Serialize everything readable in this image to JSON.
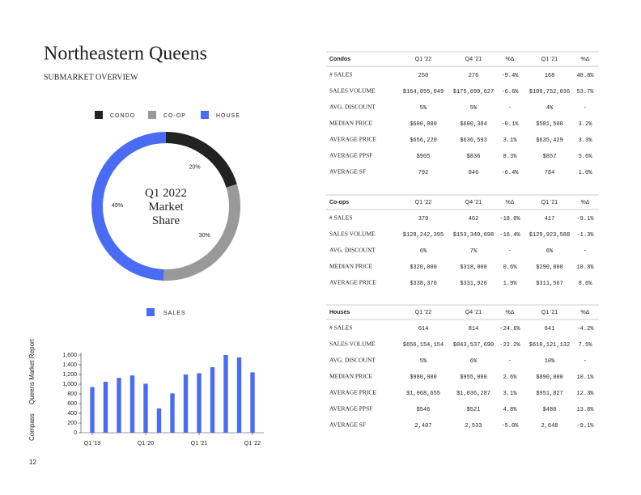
{
  "header": {
    "title": "Northeastern Queens",
    "subtitle": "SUBMARKET OVERVIEW"
  },
  "chart_data": [
    {
      "type": "pie",
      "title": "Q1 2022 Market Share",
      "categories": [
        "CONDO",
        "CO-OP",
        "HOUSE"
      ],
      "values": [
        20,
        30,
        49
      ],
      "value_labels": [
        "20%",
        "30%",
        "49%"
      ],
      "colors": [
        "#222222",
        "#999999",
        "#4a6cf4"
      ],
      "donut": true,
      "legend": "top"
    },
    {
      "type": "bar",
      "series": [
        {
          "name": "SALES",
          "color": "#4a6cf4",
          "values": [
            940,
            1050,
            1130,
            1180,
            1010,
            500,
            810,
            1200,
            1226,
            1350,
            1600,
            1552,
            1243
          ]
        }
      ],
      "categories": [
        "Q1 '19",
        null,
        null,
        null,
        "Q1 '20",
        null,
        null,
        null,
        "Q1 '21",
        null,
        null,
        null,
        "Q1 '22"
      ],
      "ylim": [
        0,
        1650
      ],
      "yticks": [
        0,
        200,
        400,
        600,
        800,
        {
          "value": 1000,
          "label": "1,000"
        },
        {
          "value": 1200,
          "label": "1,200"
        },
        {
          "value": 1400,
          "label": "1,400"
        },
        {
          "value": 1600,
          "label": "1,600"
        }
      ],
      "legend": "top"
    }
  ],
  "tables": [
    {
      "header": [
        "Condos",
        "Q1 '22",
        "Q4 '21",
        "%Δ",
        "Q1 '21",
        "%Δ"
      ],
      "rows": [
        [
          "# SALES",
          "250",
          "276",
          "-9.4%",
          "168",
          "48.8%"
        ],
        [
          "SALES VOLUME",
          "$164,055,049",
          "$175,699,627",
          "-6.6%",
          "$106,752,036",
          "53.7%"
        ],
        [
          "AVG. DISCOUNT",
          "5%",
          "5%",
          "-",
          "4%",
          "-"
        ],
        [
          "MEDIAN PRICE",
          "$600,000",
          "$600,384",
          "-0.1%",
          "$581,500",
          "3.2%"
        ],
        [
          "AVERAGE PRICE",
          "$656,220",
          "$636,593",
          "3.1%",
          "$635,429",
          "3.3%"
        ],
        [
          "AVERAGE PPSF",
          "$905",
          "$836",
          "8.3%",
          "$857",
          "5.6%"
        ],
        [
          "AVERAGE SF",
          "792",
          "846",
          "-6.4%",
          "784",
          "1.0%"
        ]
      ]
    },
    {
      "header": [
        "Co-ops",
        "Q1 '22",
        "Q4 '21",
        "%Δ",
        "Q1 '21",
        "%Δ"
      ],
      "rows": [
        [
          "# SALES",
          "379",
          "462",
          "-18.0%",
          "417",
          "-9.1%"
        ],
        [
          "SALES VOLUME",
          "$128,242,395",
          "$153,349,698",
          "-16.4%",
          "$129,923,588",
          "-1.3%"
        ],
        [
          "AVG. DISCOUNT",
          "6%",
          "7%",
          "-",
          "6%",
          "-"
        ],
        [
          "MEDIAN PRICE",
          "$320,000",
          "$318,000",
          "0.6%",
          "$290,000",
          "10.3%"
        ],
        [
          "AVERAGE PRICE",
          "$338,370",
          "$331,926",
          "1.9%",
          "$311,567",
          "8.6%"
        ]
      ]
    },
    {
      "header": [
        "Houses",
        "Q1 '22",
        "Q4 '21",
        "%Δ",
        "Q1 '21",
        "%Δ"
      ],
      "rows": [
        [
          "# SALES",
          "614",
          "814",
          "-24.6%",
          "641",
          "-4.2%"
        ],
        [
          "SALES VOLUME",
          "$656,154,154",
          "$843,537,690",
          "-22.2%",
          "$610,121,132",
          "7.5%"
        ],
        [
          "AVG. DISCOUNT",
          "5%",
          "6%",
          "-",
          "10%",
          "-"
        ],
        [
          "MEDIAN PRICE",
          "$980,000",
          "$955,000",
          "2.6%",
          "$890,000",
          "10.1%"
        ],
        [
          "AVERAGE PRICE",
          "$1,068,655",
          "$1,036,287",
          "3.1%",
          "$951,827",
          "12.3%"
        ],
        [
          "AVERAGE PPSF",
          "$546",
          "$521",
          "4.8%",
          "$480",
          "13.8%"
        ],
        [
          "AVERAGE SF",
          "2,407",
          "2,533",
          "-5.0%",
          "2,648",
          "-9.1%"
        ]
      ]
    }
  ],
  "sidebar": {
    "brand": "Compass",
    "report": "Queens Market Report"
  },
  "page_number": "12"
}
